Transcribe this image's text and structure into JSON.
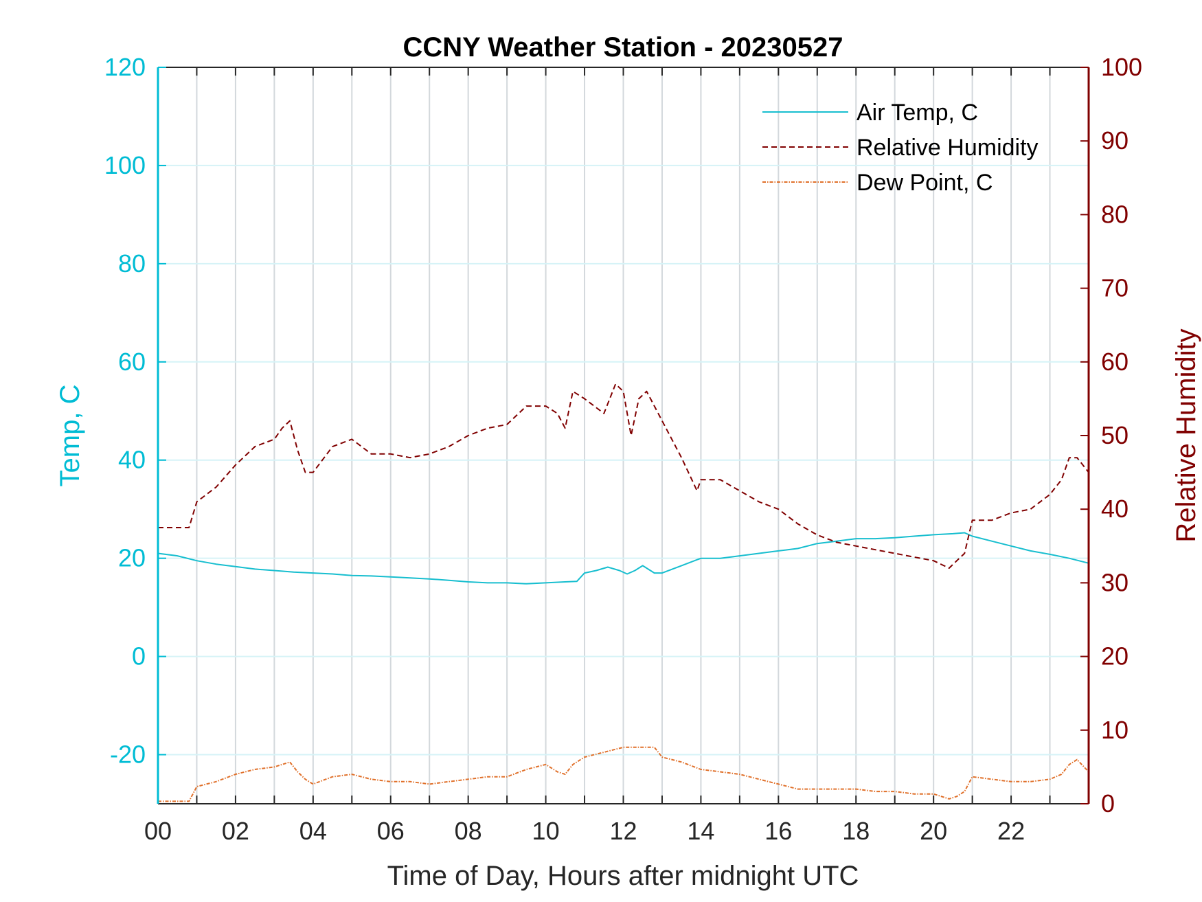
{
  "chart_data": {
    "type": "line",
    "title": "CCNY Weather Station - 20230527",
    "xlabel": "Time of Day, Hours after midnight UTC",
    "ylabel_left": "Temp, C",
    "ylabel_right": "Relative Humidity",
    "xlim": [
      0,
      24
    ],
    "ylim_left": [
      -30,
      120
    ],
    "ylim_right": [
      0,
      100
    ],
    "x_ticks": [
      "00",
      "02",
      "04",
      "06",
      "08",
      "10",
      "12",
      "14",
      "16",
      "18",
      "20",
      "22"
    ],
    "x_tick_values": [
      0,
      2,
      4,
      6,
      8,
      10,
      12,
      14,
      16,
      18,
      20,
      22
    ],
    "y_ticks_left": [
      -20,
      0,
      20,
      40,
      60,
      80,
      100,
      120
    ],
    "y_ticks_right": [
      0,
      10,
      20,
      30,
      40,
      50,
      60,
      70,
      80,
      90,
      100
    ],
    "grid": true,
    "legend_position": "top-right",
    "colors": {
      "air_temp": "#17becf",
      "relative_humidity": "#800000",
      "dew_point": "#e0702a",
      "left_axis": "#00bcd4",
      "right_axis": "#800000",
      "grid": "#d3d8dc"
    },
    "series": [
      {
        "name": "Air Temp, C",
        "axis": "left",
        "style": "solid",
        "x": [
          0,
          0.5,
          1.0,
          1.5,
          2.0,
          2.5,
          3.0,
          3.5,
          4.0,
          4.5,
          5.0,
          5.5,
          6.0,
          6.5,
          7.0,
          7.5,
          8.0,
          8.5,
          9.0,
          9.5,
          10.0,
          10.5,
          10.8,
          11.0,
          11.3,
          11.6,
          11.9,
          12.1,
          12.3,
          12.5,
          12.8,
          13.0,
          13.5,
          14.0,
          14.5,
          15.0,
          15.5,
          16.0,
          16.5,
          17.0,
          17.5,
          18.0,
          18.5,
          19.0,
          19.5,
          20.0,
          20.5,
          20.8,
          21.0,
          21.5,
          22.0,
          22.5,
          23.0,
          23.5,
          24.0
        ],
        "y": [
          21,
          20.5,
          19.5,
          18.8,
          18.3,
          17.8,
          17.5,
          17.2,
          17.0,
          16.8,
          16.5,
          16.4,
          16.2,
          16.0,
          15.8,
          15.5,
          15.2,
          15.0,
          15.0,
          14.8,
          15.0,
          15.2,
          15.3,
          17.0,
          17.5,
          18.2,
          17.5,
          16.8,
          17.5,
          18.5,
          17.0,
          17.0,
          18.5,
          20.0,
          20.0,
          20.5,
          21.0,
          21.5,
          22.0,
          23.0,
          23.5,
          24.0,
          24.0,
          24.2,
          24.5,
          24.8,
          25.0,
          25.2,
          24.5,
          23.5,
          22.5,
          21.5,
          20.8,
          20.0,
          19.0
        ]
      },
      {
        "name": "Relative Humidity",
        "axis": "right",
        "style": "dashed",
        "x": [
          0,
          0.8,
          1.0,
          1.5,
          2.0,
          2.5,
          3.0,
          3.2,
          3.4,
          3.6,
          3.8,
          4.0,
          4.5,
          5.0,
          5.5,
          6.0,
          6.5,
          7.0,
          7.5,
          8.0,
          8.5,
          9.0,
          9.5,
          10.0,
          10.3,
          10.5,
          10.7,
          11.0,
          11.5,
          11.8,
          12.0,
          12.2,
          12.4,
          12.6,
          12.8,
          13.0,
          13.5,
          13.9,
          14.0,
          14.5,
          15.0,
          15.5,
          16.0,
          16.5,
          17.0,
          17.5,
          18.0,
          18.5,
          19.0,
          19.5,
          20.0,
          20.2,
          20.4,
          20.6,
          20.8,
          21.0,
          21.5,
          22.0,
          22.5,
          23.0,
          23.3,
          23.5,
          23.7,
          24.0
        ],
        "y": [
          37.5,
          37.5,
          41,
          43,
          46,
          48.5,
          49.5,
          51,
          52,
          48,
          45,
          45,
          48.5,
          49.5,
          47.5,
          47.5,
          47,
          47.5,
          48.5,
          50,
          51,
          51.5,
          54,
          54,
          53,
          51,
          56,
          55,
          53,
          57,
          56,
          50,
          55,
          56,
          54,
          52,
          47,
          42.5,
          44,
          44,
          42.5,
          41,
          40,
          38,
          36.5,
          35.5,
          35,
          34.5,
          34,
          33.5,
          33,
          32.5,
          32,
          33,
          34,
          38.5,
          38.5,
          39.5,
          40,
          42,
          44,
          47,
          47,
          45
        ]
      },
      {
        "name": "Dew Point, C",
        "axis": "left",
        "style": "dash-dot",
        "x": [
          0,
          0.8,
          1.0,
          1.5,
          2.0,
          2.5,
          3.0,
          3.2,
          3.4,
          3.6,
          3.8,
          4.0,
          4.5,
          5.0,
          5.5,
          6.0,
          6.5,
          7.0,
          7.5,
          8.0,
          8.5,
          9.0,
          9.5,
          10.0,
          10.3,
          10.5,
          10.7,
          11.0,
          11.5,
          12.0,
          12.3,
          12.5,
          12.8,
          13.0,
          13.5,
          14.0,
          14.5,
          15.0,
          15.5,
          16.0,
          16.5,
          17.0,
          17.5,
          18.0,
          18.5,
          19.0,
          19.5,
          20.0,
          20.2,
          20.4,
          20.6,
          20.8,
          21.0,
          21.5,
          22.0,
          22.5,
          23.0,
          23.3,
          23.5,
          23.7,
          24.0
        ],
        "y": [
          -29.5,
          -29.5,
          -26.5,
          -25.5,
          -24,
          -23,
          -22.5,
          -22,
          -21.5,
          -23.5,
          -25,
          -26,
          -24.5,
          -24,
          -25,
          -25.5,
          -25.5,
          -26,
          -25.5,
          -25,
          -24.5,
          -24.5,
          -23,
          -22,
          -23.5,
          -24,
          -22,
          -20.5,
          -19.5,
          -18.5,
          -18.5,
          -18.5,
          -18.5,
          -20.5,
          -21.5,
          -23,
          -23.5,
          -24,
          -25,
          -26,
          -27,
          -27,
          -27,
          -27,
          -27.5,
          -27.5,
          -28,
          -28,
          -28.5,
          -29,
          -28.5,
          -27.5,
          -24.5,
          -25,
          -25.5,
          -25.5,
          -25,
          -24,
          -22,
          -21,
          -23.5
        ]
      }
    ]
  }
}
